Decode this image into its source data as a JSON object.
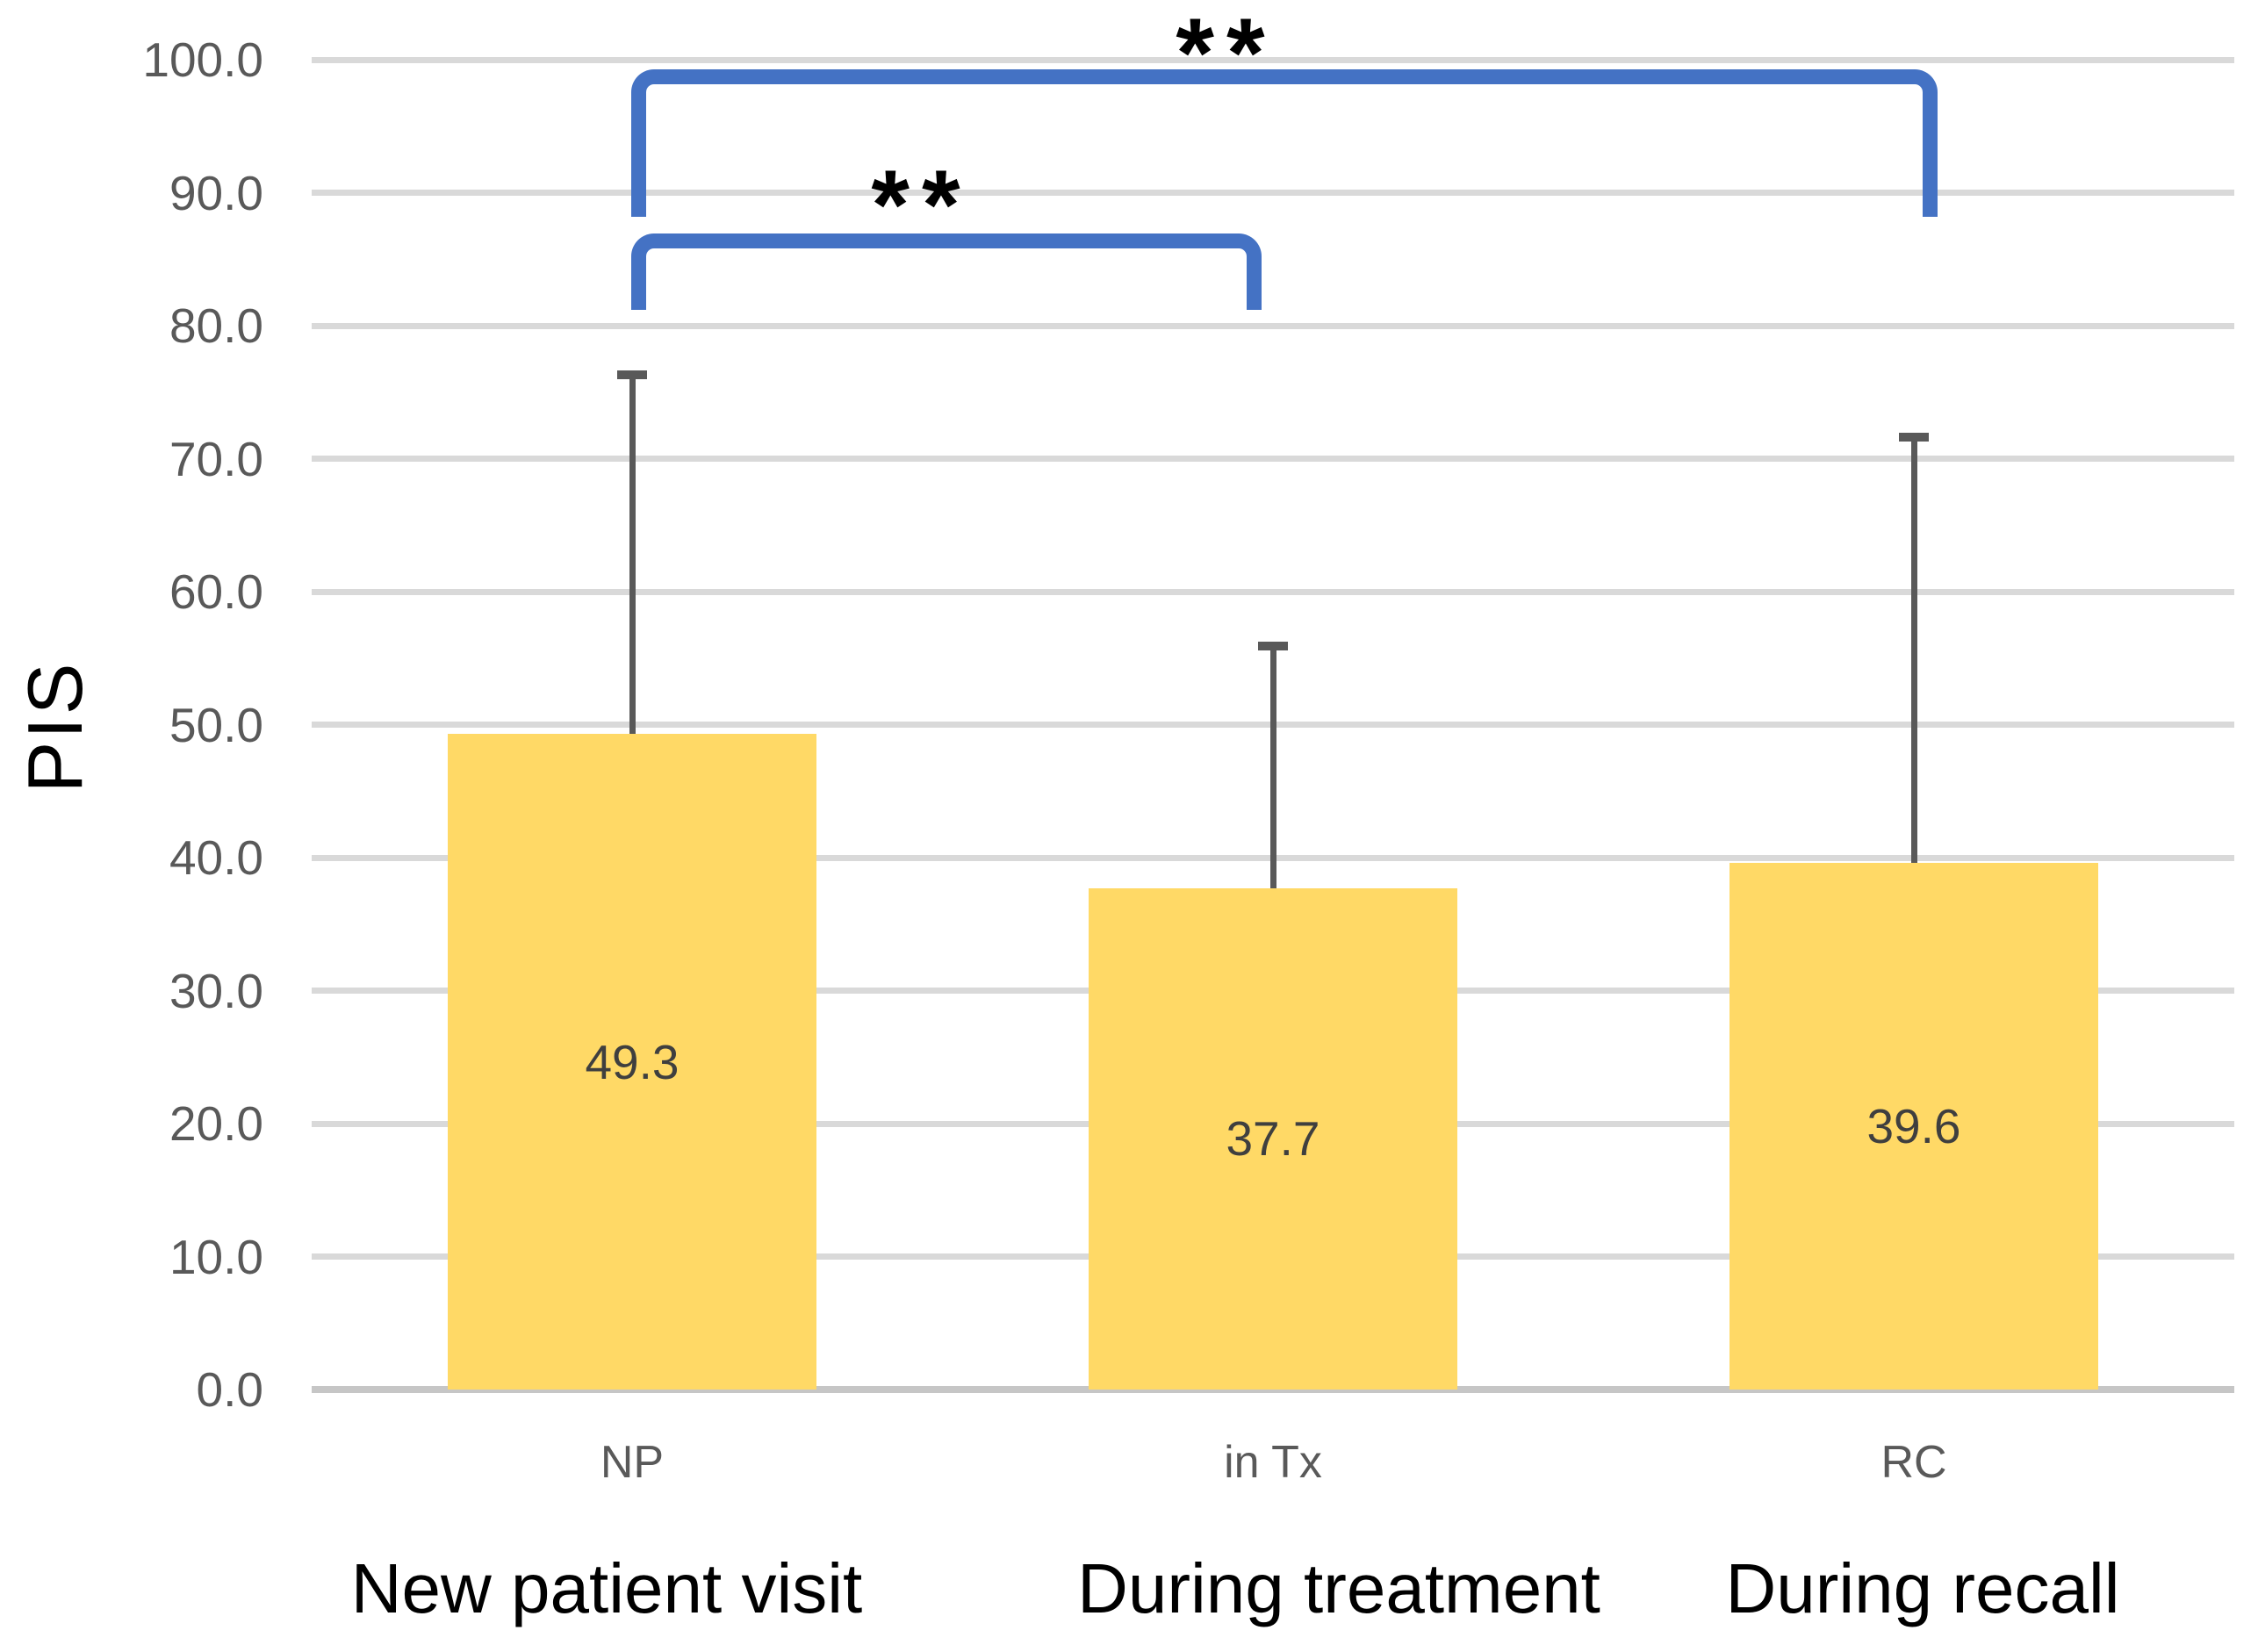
{
  "chart_data": {
    "type": "bar",
    "title": "",
    "ylabel": "PIS",
    "xlabel": "",
    "ylim": [
      0,
      100
    ],
    "ytick_step": 10,
    "grid": true,
    "legend": "none",
    "yticks": [
      {
        "v": 100,
        "label": "100.0"
      },
      {
        "v": 90,
        "label": "90.0"
      },
      {
        "v": 80,
        "label": "80.0"
      },
      {
        "v": 70,
        "label": "70.0"
      },
      {
        "v": 60,
        "label": "60.0"
      },
      {
        "v": 50,
        "label": "50.0"
      },
      {
        "v": 40,
        "label": "40.0"
      },
      {
        "v": 30,
        "label": "30.0"
      },
      {
        "v": 20,
        "label": "20.0"
      },
      {
        "v": 10,
        "label": "10.0"
      },
      {
        "v": 0,
        "label": "0.0"
      }
    ],
    "categories": [
      {
        "tick": "NP",
        "label": "New patient visit"
      },
      {
        "tick": "in Tx",
        "label": "During treatment"
      },
      {
        "tick": "RC",
        "label": "During recall"
      }
    ],
    "values": [
      49.3,
      37.7,
      39.6
    ],
    "value_labels": [
      "49.3",
      "37.7",
      "39.6"
    ],
    "error_whisker_top_values": [
      76.3,
      55.9,
      71.6
    ],
    "significance": [
      {
        "from": "NP",
        "to": "RC",
        "label": "**"
      },
      {
        "from": "NP",
        "to": "in Tx",
        "label": "**"
      }
    ],
    "colors": {
      "bar_fill": "#FFD966",
      "error_bar": "#595959",
      "bracket": "#4472C4",
      "gridline": "#D9D9D9",
      "axis_line": "#C6C6C6",
      "tick_text": "#595959",
      "value_text": "#3F3F3F",
      "group_label_text": "#000000",
      "background": "#FFFFFF"
    }
  }
}
